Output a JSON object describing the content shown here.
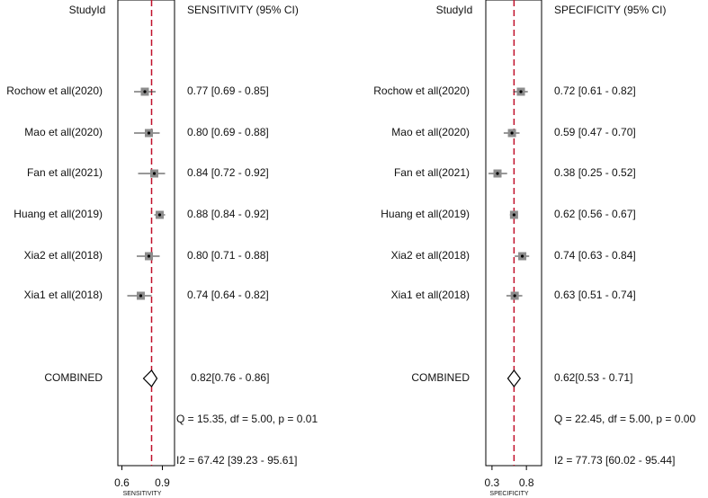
{
  "chart_data": [
    {
      "type": "forest",
      "column_headers": [
        "StudyId",
        "SENSITIVITY (95% CI)"
      ],
      "xlabel": "SENSITIVITY",
      "categories": [
        "Rochow et all(2020)",
        "Mao et all(2020)",
        "Fan et all(2021)",
        "Huang et all(2019)",
        "Xia2 et all(2018)",
        "Xia1 et all(2018)"
      ],
      "values": [
        0.77,
        0.8,
        0.84,
        0.88,
        0.8,
        0.74
      ],
      "ci_lower": [
        0.69,
        0.69,
        0.72,
        0.84,
        0.71,
        0.64
      ],
      "ci_upper": [
        0.85,
        0.88,
        0.92,
        0.92,
        0.88,
        0.82
      ],
      "value_labels": [
        "0.77 [0.69 - 0.85]",
        "0.80 [0.69 - 0.88]",
        "0.84 [0.72 - 0.92]",
        "0.88 [0.84 - 0.92]",
        "0.80 [0.71 - 0.88]",
        "0.74 [0.64 - 0.82]"
      ],
      "combined": {
        "label": "COMBINED",
        "value": 0.82,
        "ci_lower": 0.76,
        "ci_upper": 0.86,
        "value_label": "0.82[0.76 - 0.86]"
      },
      "heterogeneity": [
        "Q = 15.35, df = 5.00, p =  0.01",
        "I2 = 67.42 [39.23 - 95.61]"
      ],
      "xlim": [
        0.57,
        0.99
      ],
      "xticks": [
        0.6,
        0.9
      ],
      "marker_color": "#8c8c8c",
      "reference_color": "#c0102a"
    },
    {
      "type": "forest",
      "column_headers": [
        "StudyId",
        "SPECIFICITY (95% CI)"
      ],
      "xlabel": "SPECIFICITY",
      "categories": [
        "Rochow et all(2020)",
        "Mao et all(2020)",
        "Fan et all(2021)",
        "Huang et all(2019)",
        "Xia2 et all(2018)",
        "Xia1 et all(2018)"
      ],
      "values": [
        0.72,
        0.59,
        0.38,
        0.62,
        0.74,
        0.63
      ],
      "ci_lower": [
        0.61,
        0.47,
        0.25,
        0.56,
        0.63,
        0.51
      ],
      "ci_upper": [
        0.82,
        0.7,
        0.52,
        0.67,
        0.84,
        0.74
      ],
      "value_labels": [
        "0.72 [0.61 - 0.82]",
        "0.59 [0.47 - 0.70]",
        "0.38 [0.25 - 0.52]",
        "0.62 [0.56 - 0.67]",
        "0.74 [0.63 - 0.84]",
        "0.63 [0.51 - 0.74]"
      ],
      "combined": {
        "label": "COMBINED",
        "value": 0.62,
        "ci_lower": 0.53,
        "ci_upper": 0.71,
        "value_label": "0.62[0.53 - 0.71]"
      },
      "heterogeneity": [
        "Q = 22.45, df = 5.00, p =  0.00",
        "I2 = 77.73 [60.02 - 95.44]"
      ],
      "xlim": [
        0.21,
        1.02
      ],
      "xticks": [
        0.3,
        0.8
      ],
      "marker_color": "#8c8c8c",
      "reference_color": "#c0102a"
    }
  ]
}
